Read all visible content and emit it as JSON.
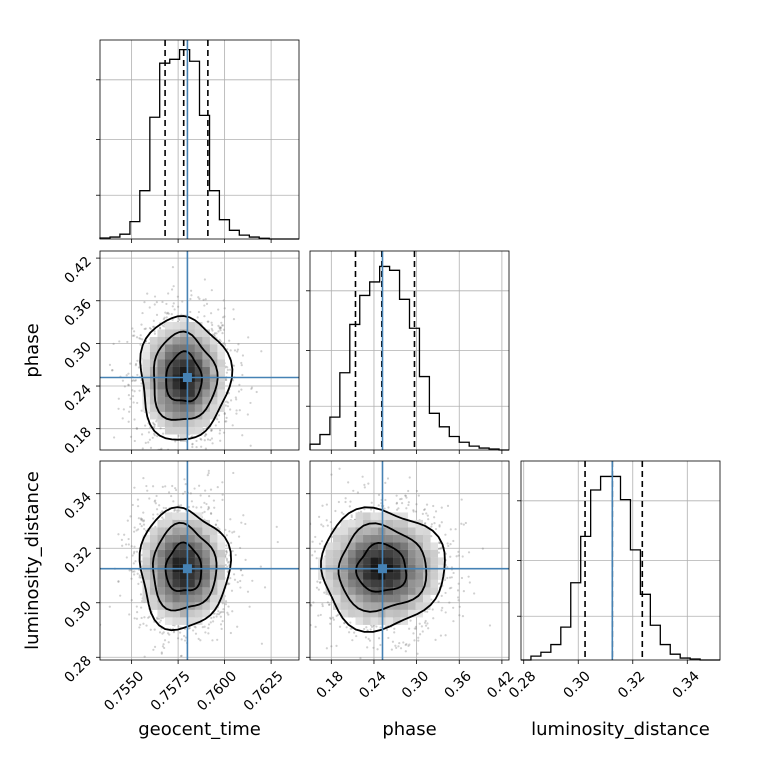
{
  "chart_data": {
    "type": "corner",
    "parameters": [
      {
        "name": "geocent_time",
        "label": "geocent_time",
        "range": [
          0.7533,
          0.764
        ],
        "ticks": [
          0.755,
          0.7575,
          0.76,
          0.7625
        ],
        "tick_labels": [
          "0.7550",
          "0.7575",
          "0.7600",
          "0.7625"
        ],
        "truth": 0.758,
        "quantiles": [
          0.7568,
          0.7578,
          0.7591
        ],
        "hist_bins": [
          0.7533,
          0.75384,
          0.75437,
          0.75491,
          0.75544,
          0.75598,
          0.75651,
          0.75705,
          0.75758,
          0.75812,
          0.75865,
          0.75919,
          0.75972,
          0.76026,
          0.76079,
          0.76133,
          0.76186,
          0.7624,
          0.76293,
          0.76347,
          0.764
        ],
        "hist_counts": [
          0.005,
          0.01,
          0.025,
          0.09,
          0.25,
          0.63,
          0.91,
          0.93,
          0.98,
          0.92,
          0.64,
          0.25,
          0.1,
          0.045,
          0.02,
          0.01,
          0.004,
          0.0,
          0.0,
          0.0
        ]
      },
      {
        "name": "phase",
        "label": "phase",
        "range": [
          0.15,
          0.43
        ],
        "ticks": [
          0.18,
          0.24,
          0.3,
          0.36,
          0.42
        ],
        "tick_labels": [
          "0.18",
          "0.24",
          "0.30",
          "0.36",
          "0.42"
        ],
        "truth": 0.252,
        "quantiles": [
          0.214,
          0.251,
          0.297
        ],
        "hist_bins": [
          0.15,
          0.164,
          0.178,
          0.192,
          0.206,
          0.22,
          0.234,
          0.248,
          0.262,
          0.276,
          0.29,
          0.304,
          0.318,
          0.332,
          0.346,
          0.36,
          0.374,
          0.388,
          0.402,
          0.416,
          0.43
        ],
        "hist_counts": [
          0.03,
          0.08,
          0.17,
          0.4,
          0.65,
          0.8,
          0.87,
          0.95,
          0.93,
          0.78,
          0.63,
          0.38,
          0.19,
          0.12,
          0.07,
          0.04,
          0.02,
          0.01,
          0.005,
          0.0
        ]
      },
      {
        "name": "luminosity_distance",
        "label": "luminosity_distance",
        "range": [
          0.279,
          0.352
        ],
        "ticks": [
          0.28,
          0.3,
          0.32,
          0.34
        ],
        "tick_labels": [
          "0.28",
          "0.30",
          "0.32",
          "0.34"
        ],
        "truth": 0.3125,
        "quantiles": [
          0.3025,
          0.3125,
          0.3235
        ],
        "hist_bins": [
          0.279,
          0.28265,
          0.2863,
          0.28995,
          0.2936,
          0.29725,
          0.3009,
          0.30455,
          0.3082,
          0.31185,
          0.3155,
          0.31915,
          0.3228,
          0.32645,
          0.3301,
          0.33375,
          0.3374,
          0.34105,
          0.3447,
          0.34835,
          0.352
        ],
        "hist_counts": [
          0.0,
          0.02,
          0.04,
          0.08,
          0.17,
          0.4,
          0.64,
          0.88,
          0.95,
          0.95,
          0.83,
          0.57,
          0.34,
          0.18,
          0.08,
          0.03,
          0.01,
          0.005,
          0.0,
          0.0
        ]
      }
    ],
    "contour_levels": [
      0.39,
      0.86,
      0.99
    ],
    "truth_color": "#4682b4",
    "line_color": "#000000",
    "grid": true
  }
}
